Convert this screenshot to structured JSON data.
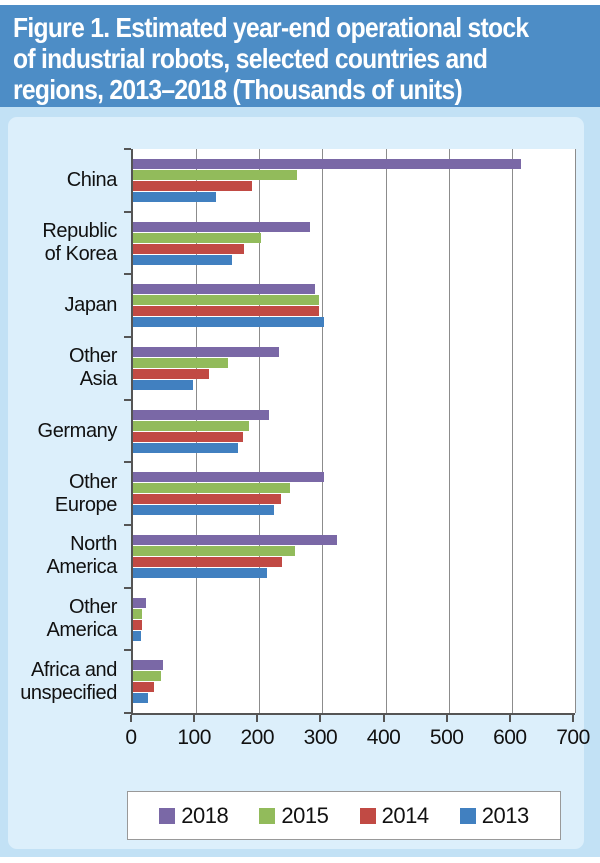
{
  "figure": {
    "title": "Figure 1. Estimated year-end operational stock\nof industrial robots, selected countries and\nregions, 2013–2018 (Thousands of units)"
  },
  "colors": {
    "title_band": "#4D8DC6",
    "outer_background": "#C2E1F5",
    "panel_background": "#DCEFFB",
    "plot_background": "#FFFFFF",
    "gridline": "#8C8C8C",
    "axis": "#555555",
    "series_2018": "#7A68A6",
    "series_2015": "#92BB5B",
    "series_2014": "#C14A44",
    "series_2013": "#4180C0"
  },
  "chart_data": {
    "type": "bar",
    "orientation": "horizontal",
    "title": "Figure 1. Estimated year-end operational stock of industrial robots, selected countries and regions, 2013–2018 (Thousands of units)",
    "units": "Thousands of units",
    "categories": [
      "China",
      "Republic of Korea",
      "Japan",
      "Other Asia",
      "Germany",
      "Other Europe",
      "North America",
      "Other America",
      "Africa and unspecified"
    ],
    "category_display_labels": [
      "China",
      "Republic\nof Korea",
      "Japan",
      "Other\nAsia",
      "Germany",
      "Other\nEurope",
      "North\nAmerica",
      "Other\nAmerica",
      "Africa and\nunspecified"
    ],
    "series": [
      {
        "name": "2018",
        "color": "#7A68A6",
        "values": [
          615,
          280,
          289,
          232,
          216,
          302,
          323,
          20,
          47
        ]
      },
      {
        "name": "2015",
        "color": "#92BB5B",
        "values": [
          260,
          202,
          295,
          151,
          183,
          249,
          257,
          14,
          45
        ]
      },
      {
        "name": "2014",
        "color": "#C14A44",
        "values": [
          188,
          176,
          294,
          121,
          174,
          234,
          236,
          14,
          34
        ]
      },
      {
        "name": "2013",
        "color": "#4180C0",
        "values": [
          132,
          156,
          302,
          95,
          166,
          223,
          213,
          12,
          24
        ]
      }
    ],
    "xlabel": "",
    "ylabel": "",
    "xlim": [
      0,
      700
    ],
    "x_ticks": [
      "0",
      "100",
      "200",
      "300",
      "400",
      "500",
      "600",
      "700"
    ],
    "grid": "vertical",
    "legend_position": "bottom",
    "legend_entries": [
      {
        "label": "2018",
        "color": "#7A68A6"
      },
      {
        "label": "2015",
        "color": "#92BB5B"
      },
      {
        "label": "2014",
        "color": "#C14A44"
      },
      {
        "label": "2013",
        "color": "#4180C0"
      }
    ]
  }
}
